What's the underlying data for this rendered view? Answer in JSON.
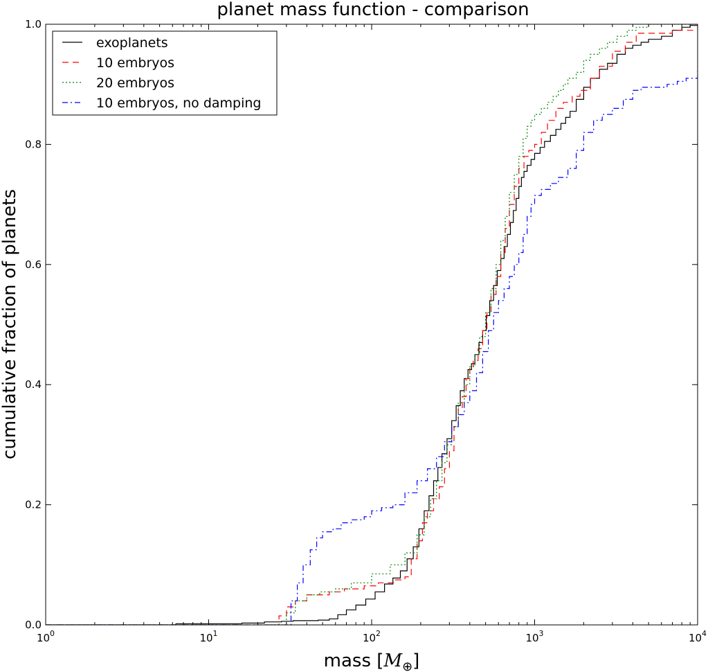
{
  "chart_data": {
    "type": "line",
    "title": "planet mass function - comparison",
    "xlabel_prefix": "mass [",
    "xlabel_symbol": "M",
    "xlabel_subscript": "⊕",
    "xlabel_suffix": "]",
    "ylabel": "cumulative fraction of planets",
    "x_scale": "log",
    "xlim": [
      1,
      10000
    ],
    "ylim": [
      0,
      1
    ],
    "x_ticks": [
      {
        "value": 1,
        "base": "10",
        "exp": "0"
      },
      {
        "value": 10,
        "base": "10",
        "exp": "1"
      },
      {
        "value": 100,
        "base": "10",
        "exp": "2"
      },
      {
        "value": 1000,
        "base": "10",
        "exp": "3"
      },
      {
        "value": 10000,
        "base": "10",
        "exp": "4"
      }
    ],
    "y_ticks": [
      {
        "value": 0,
        "label": "0.0"
      },
      {
        "value": 0.2,
        "label": "0.2"
      },
      {
        "value": 0.4,
        "label": "0.4"
      },
      {
        "value": 0.6,
        "label": "0.6"
      },
      {
        "value": 0.8,
        "label": "0.8"
      },
      {
        "value": 1,
        "label": "1.0"
      }
    ],
    "grid": false,
    "legend_position": "top-left",
    "series": [
      {
        "name": "exoplanets",
        "color": "#000000",
        "style": "solid",
        "x": [
          1,
          6.3,
          16,
          22,
          28,
          33,
          40,
          47,
          55,
          62,
          70,
          80,
          92,
          105,
          120,
          135,
          150,
          165,
          180,
          195,
          210,
          225,
          240,
          255,
          270,
          290,
          310,
          330,
          350,
          370,
          390,
          410,
          430,
          455,
          480,
          505,
          530,
          560,
          590,
          620,
          650,
          680,
          710,
          740,
          770,
          800,
          830,
          860,
          900,
          950,
          1000,
          1080,
          1150,
          1250,
          1350,
          1450,
          1550,
          1650,
          1800,
          2000,
          2200,
          2500,
          2800,
          3200,
          3600,
          4000,
          4500,
          5000,
          6000,
          7000,
          8000,
          9000,
          10000
        ],
        "y": [
          0,
          0.002,
          0.003,
          0.005,
          0.006,
          0.007,
          0.007,
          0.008,
          0.01,
          0.017,
          0.025,
          0.033,
          0.043,
          0.055,
          0.068,
          0.078,
          0.09,
          0.11,
          0.13,
          0.16,
          0.19,
          0.215,
          0.24,
          0.262,
          0.285,
          0.31,
          0.34,
          0.365,
          0.39,
          0.41,
          0.425,
          0.435,
          0.45,
          0.47,
          0.49,
          0.515,
          0.54,
          0.565,
          0.59,
          0.61,
          0.63,
          0.65,
          0.67,
          0.69,
          0.71,
          0.73,
          0.745,
          0.755,
          0.765,
          0.775,
          0.785,
          0.795,
          0.805,
          0.815,
          0.825,
          0.835,
          0.845,
          0.855,
          0.875,
          0.895,
          0.91,
          0.925,
          0.935,
          0.95,
          0.96,
          0.965,
          0.97,
          0.975,
          0.98,
          0.99,
          0.995,
          0.998,
          1.0
        ]
      },
      {
        "name": "10 embryos",
        "color": "#ff0000",
        "style": "dashed",
        "x": [
          1,
          25,
          27,
          30,
          34,
          40,
          55,
          68,
          90,
          110,
          140,
          160,
          175,
          190,
          205,
          220,
          240,
          260,
          280,
          300,
          320,
          340,
          360,
          380,
          400,
          420,
          450,
          480,
          510,
          540,
          580,
          620,
          660,
          700,
          750,
          800,
          860,
          920,
          1000,
          1100,
          1200,
          1350,
          1500,
          1700,
          1900,
          2200,
          2500,
          3000,
          3600,
          4200,
          5000,
          6000,
          7000,
          10000
        ],
        "y": [
          0,
          0.0,
          0.015,
          0.03,
          0.04,
          0.05,
          0.055,
          0.06,
          0.065,
          0.07,
          0.075,
          0.08,
          0.11,
          0.14,
          0.17,
          0.19,
          0.21,
          0.23,
          0.26,
          0.29,
          0.33,
          0.36,
          0.38,
          0.41,
          0.43,
          0.44,
          0.46,
          0.49,
          0.52,
          0.55,
          0.58,
          0.62,
          0.66,
          0.7,
          0.73,
          0.76,
          0.78,
          0.79,
          0.8,
          0.82,
          0.84,
          0.86,
          0.87,
          0.88,
          0.89,
          0.91,
          0.93,
          0.955,
          0.97,
          0.985,
          0.985,
          0.985,
          0.99,
          1.0
        ]
      },
      {
        "name": "20 embryos",
        "color": "#008000",
        "style": "dotted",
        "x": [
          1,
          27,
          30,
          34,
          40,
          48,
          60,
          75,
          100,
          130,
          160,
          190,
          210,
          230,
          250,
          270,
          290,
          310,
          340,
          370,
          400,
          430,
          460,
          500,
          540,
          580,
          620,
          660,
          700,
          750,
          800,
          850,
          900,
          950,
          1000,
          1100,
          1200,
          1300,
          1400,
          1500,
          1600,
          1800,
          2000,
          2200,
          2500,
          2800,
          3200,
          3700,
          4200,
          5000,
          10000
        ],
        "y": [
          0,
          0.0,
          0.02,
          0.04,
          0.05,
          0.055,
          0.06,
          0.07,
          0.085,
          0.1,
          0.12,
          0.15,
          0.18,
          0.21,
          0.24,
          0.27,
          0.3,
          0.33,
          0.37,
          0.4,
          0.43,
          0.45,
          0.48,
          0.52,
          0.56,
          0.6,
          0.64,
          0.68,
          0.72,
          0.75,
          0.78,
          0.81,
          0.83,
          0.84,
          0.85,
          0.86,
          0.87,
          0.88,
          0.89,
          0.9,
          0.91,
          0.92,
          0.94,
          0.95,
          0.96,
          0.97,
          0.98,
          0.99,
          0.995,
          1.0,
          1.0
        ]
      },
      {
        "name": "10 embryos, no damping",
        "color": "#0000ff",
        "style": "dashdot",
        "x": [
          1,
          30,
          32,
          35,
          38,
          42,
          46,
          50,
          58,
          65,
          75,
          90,
          100,
          115,
          135,
          160,
          190,
          220,
          250,
          280,
          310,
          340,
          370,
          400,
          440,
          480,
          520,
          560,
          600,
          650,
          700,
          750,
          800,
          850,
          900,
          950,
          1000,
          1100,
          1250,
          1400,
          1600,
          1800,
          2000,
          2300,
          2600,
          3000,
          3500,
          4000,
          4500,
          5500,
          6500,
          7500,
          8500,
          10000
        ],
        "y": [
          0,
          0.0,
          0.04,
          0.07,
          0.1,
          0.125,
          0.145,
          0.155,
          0.16,
          0.17,
          0.175,
          0.18,
          0.19,
          0.195,
          0.2,
          0.22,
          0.24,
          0.26,
          0.28,
          0.305,
          0.33,
          0.35,
          0.37,
          0.39,
          0.42,
          0.455,
          0.49,
          0.52,
          0.54,
          0.56,
          0.58,
          0.6,
          0.62,
          0.65,
          0.68,
          0.7,
          0.715,
          0.725,
          0.735,
          0.745,
          0.76,
          0.79,
          0.82,
          0.84,
          0.85,
          0.86,
          0.875,
          0.89,
          0.895,
          0.895,
          0.9,
          0.905,
          0.91,
          0.925
        ]
      }
    ]
  }
}
